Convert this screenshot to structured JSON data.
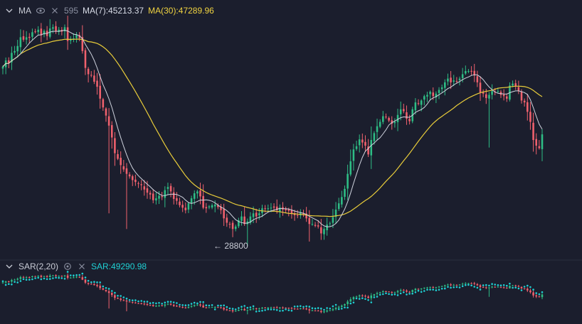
{
  "colors": {
    "background": "#1b1e2d",
    "up": "#2ebd85",
    "down": "#f0616d",
    "ma7": "#cfd3de",
    "ma30": "#e8cc3a",
    "sar": "#1fd0d3",
    "separator": "#2a2e3e"
  },
  "legend": {
    "indicator": "MA",
    "ma7": "MA(7):45213.37",
    "ma30": "MA(30):47289.96",
    "partial_value": "595",
    "icons": [
      "chevron-down-icon",
      "eye-icon",
      "close-icon"
    ]
  },
  "sar_legend": {
    "indicator": "SAR(2,20)",
    "value": "SAR:49290.98",
    "icons": [
      "chevron-down-icon",
      "settings-icon",
      "close-icon"
    ]
  },
  "low_marker": "← 28800",
  "chart_data": {
    "type": "candlestick",
    "title": "",
    "grid": false,
    "ylim": [
      27000,
      66000
    ],
    "price_reference": {
      "label": "28800",
      "value": 28800
    },
    "series": [
      {
        "name": "MA(7)",
        "last": 45213.37
      },
      {
        "name": "MA(30)",
        "last": 47289.96
      },
      {
        "name": "SAR(2,20)",
        "last": 49290.98
      }
    ],
    "closes": [
      57400,
      58400,
      58000,
      59600,
      59900,
      60700,
      62100,
      61700,
      62100,
      62000,
      62900,
      63000,
      63300,
      62400,
      63100,
      62300,
      63500,
      63700,
      63000,
      63300,
      63000,
      63700,
      61500,
      61700,
      61900,
      62500,
      62000,
      59900,
      57200,
      56200,
      56000,
      55000,
      54200,
      52300,
      50900,
      49600,
      48000,
      46100,
      43600,
      42700,
      41700,
      41000,
      40300,
      39900,
      39300,
      39000,
      38800,
      38500,
      37800,
      37300,
      37000,
      36100,
      36400,
      36800,
      36600,
      37700,
      38200,
      37500,
      36300,
      36000,
      35300,
      34900,
      34500,
      35600,
      36400,
      37200,
      37500,
      36700,
      34900,
      34800,
      35100,
      35300,
      35400,
      35000,
      34500,
      33200,
      32500,
      32300,
      31500,
      31900,
      32900,
      33500,
      32300,
      32700,
      33500,
      34000,
      33500,
      34000,
      34800,
      34700,
      34800,
      34900,
      34900,
      34500,
      34900,
      34600,
      34500,
      34400,
      34000,
      33700,
      33600,
      34100,
      33800,
      33200,
      32300,
      32300,
      32000,
      31900,
      30800,
      31500,
      32200,
      32400,
      33400,
      34600,
      35600,
      36600,
      37900,
      40300,
      42300,
      44200,
      44700,
      45800,
      45300,
      44800,
      43400,
      45700,
      46800,
      47900,
      48600,
      49500,
      49400,
      48800,
      48300,
      48600,
      49700,
      50600,
      50300,
      49100,
      48700,
      50600,
      51700,
      51500,
      52000,
      52700,
      52900,
      53400,
      52700,
      53100,
      53700,
      54100,
      54900,
      55500,
      54900,
      55200,
      55100,
      55500,
      56200,
      56700,
      56700,
      56600,
      56000,
      54900,
      53300,
      53100,
      52400,
      52900,
      53500,
      53400,
      53500,
      52900,
      52700,
      52300,
      54400,
      54700,
      54300,
      53500,
      52000,
      51700,
      50200,
      48600,
      45700,
      44800,
      44400,
      46600
    ]
  }
}
